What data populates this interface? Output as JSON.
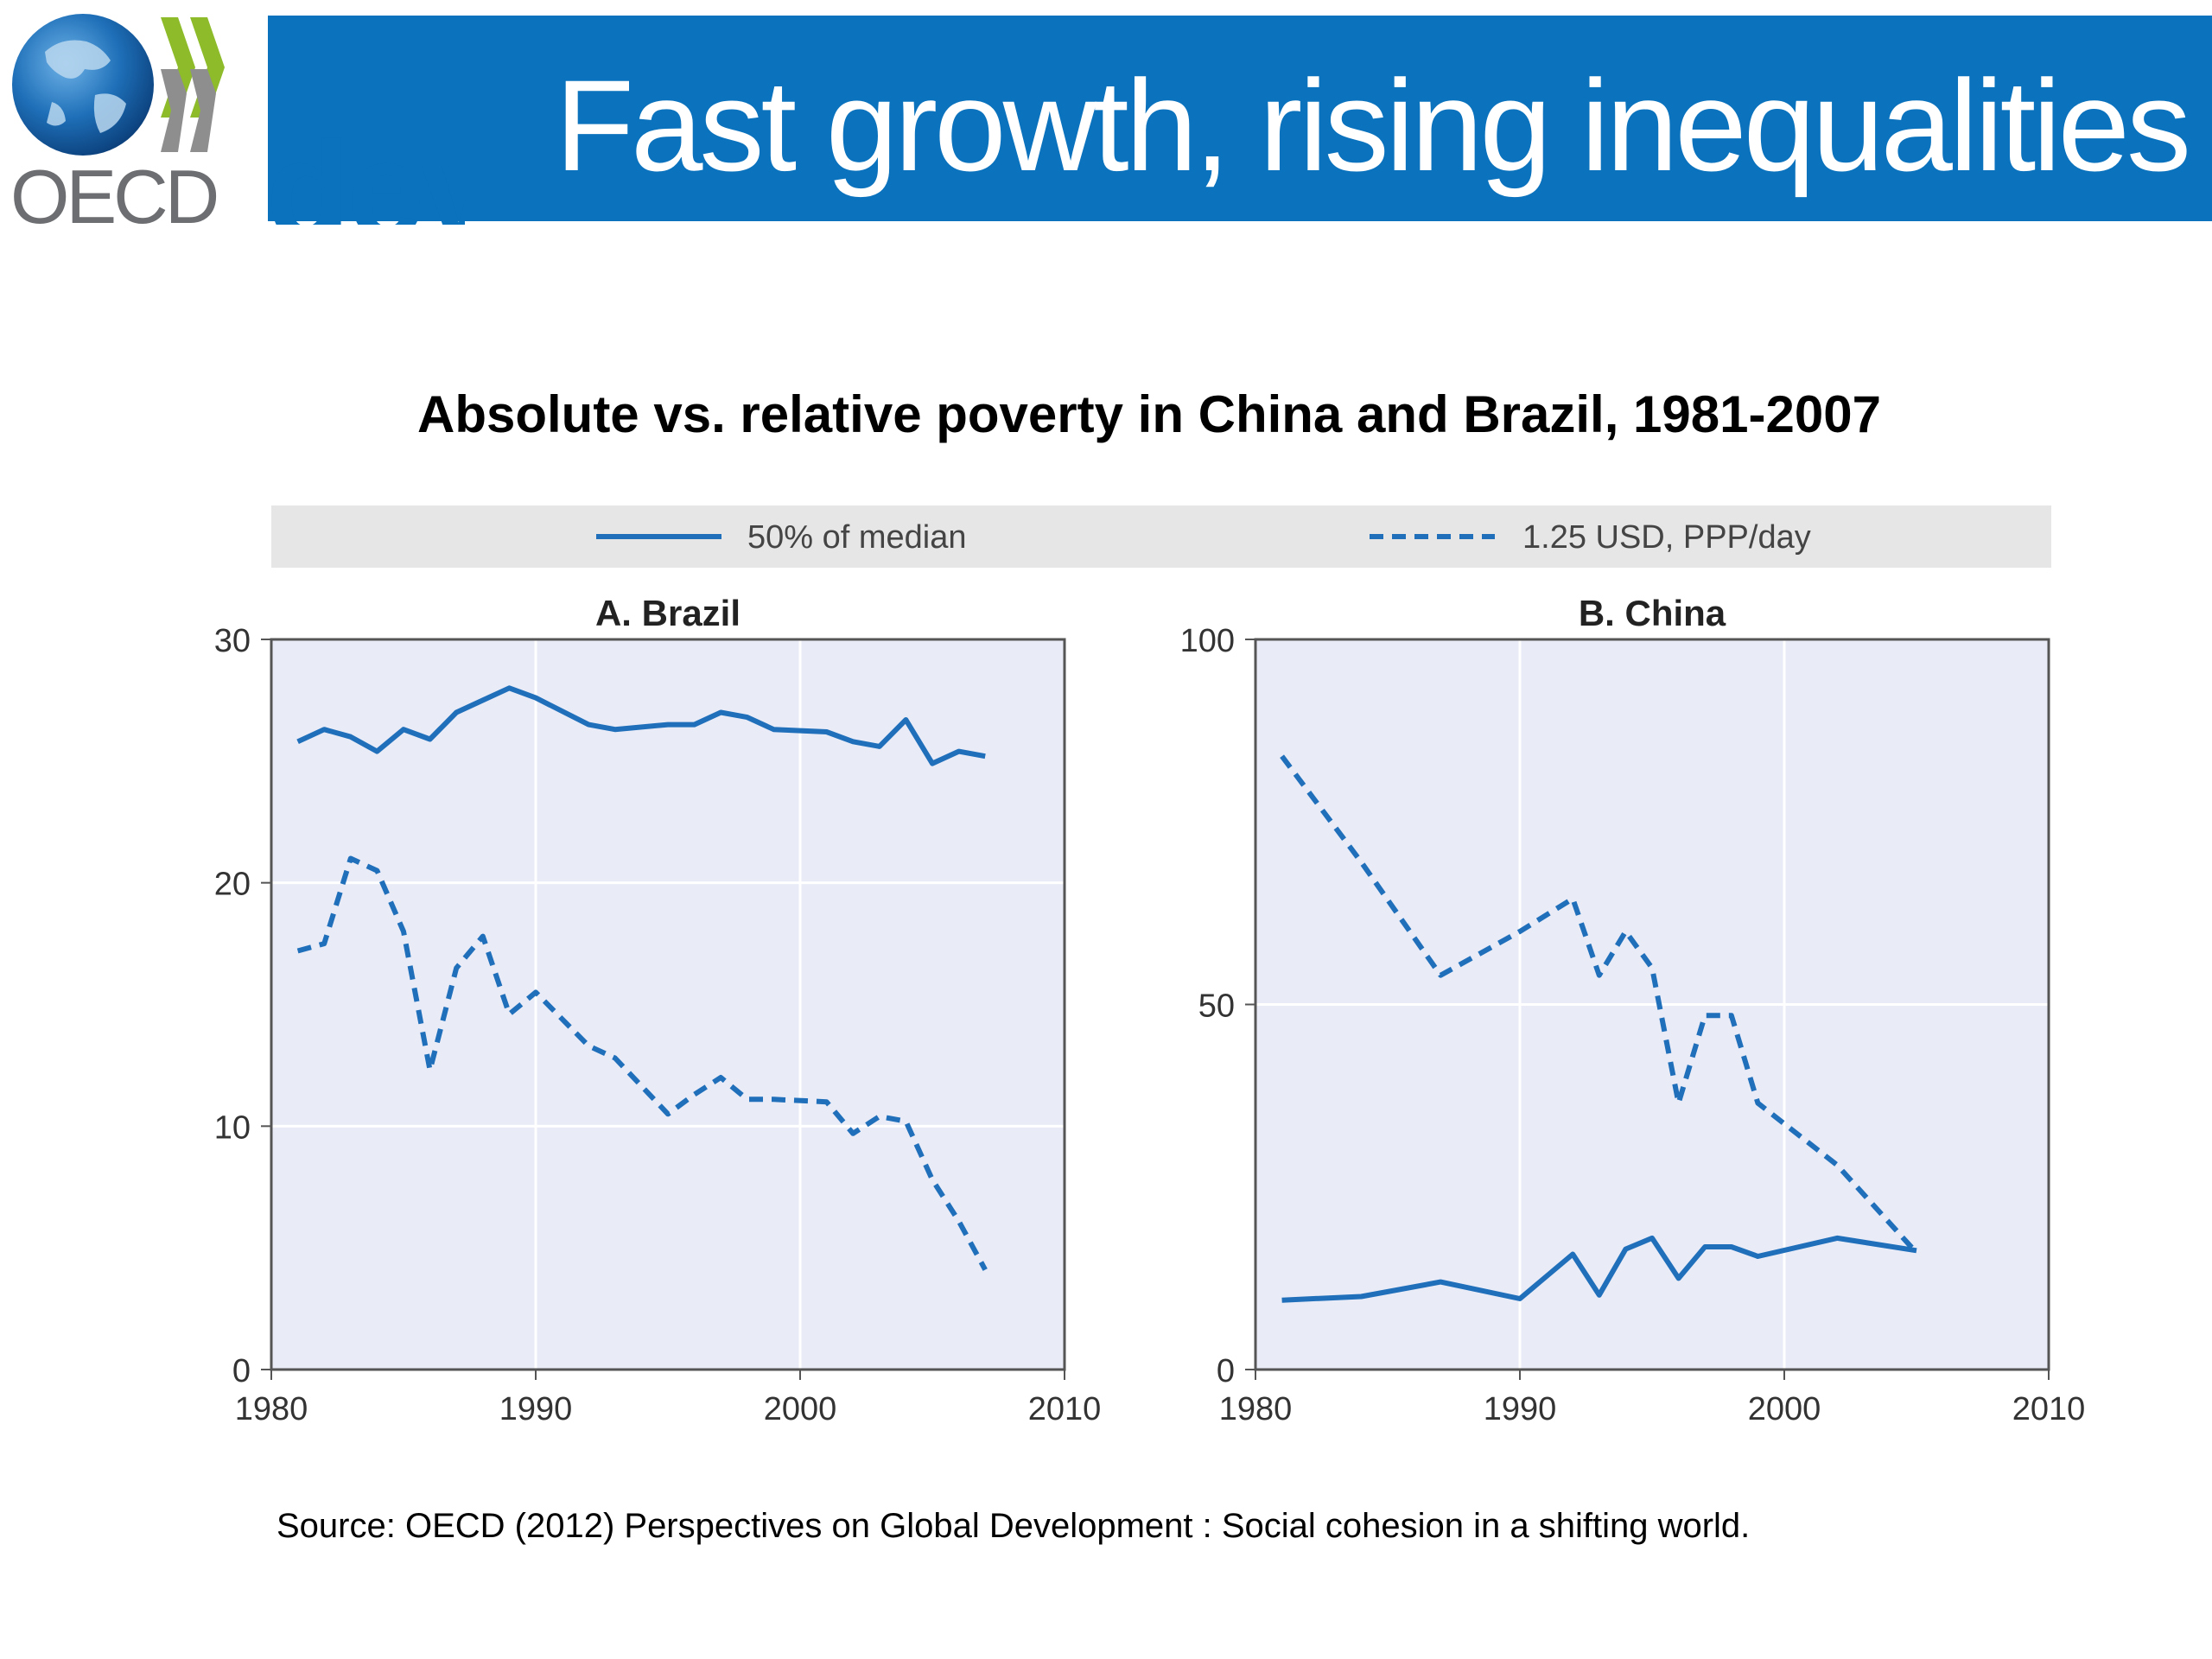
{
  "header": {
    "logo_text": "OECD",
    "dev_text": "dev",
    "title": "Fast growth, rising inequalities"
  },
  "colors": {
    "banner": "#0b72bd",
    "series": "#1f6fba",
    "plot_bg": "#e9ebf7",
    "legend_bg": "#e6e6e6"
  },
  "source_note": "Source:  OECD (2012) Perspectives on Global Development : Social cohesion in a shifting world.",
  "chart_data": {
    "type": "line",
    "title": "Absolute vs. relative poverty in China and Brazil, 1981-2007",
    "legend": [
      {
        "name": "50% of median",
        "style": "solid"
      },
      {
        "name": "1.25 USD, PPP/day",
        "style": "dashed"
      }
    ],
    "legend_placement": "top",
    "grid": true,
    "panels": [
      {
        "title": "A. Brazil",
        "xlim": [
          1980,
          2010
        ],
        "ylim": [
          0,
          30
        ],
        "xticks": [
          1980,
          1990,
          2000,
          2010
        ],
        "yticks": [
          0,
          10,
          20,
          30
        ],
        "series": [
          {
            "name": "50% of median",
            "style": "solid",
            "x": [
              1981,
              1982,
              1983,
              1984,
              1985,
              1986,
              1987,
              1988,
              1989,
              1990,
              1992,
              1993,
              1995,
              1996,
              1997,
              1998,
              1999,
              2001,
              2002,
              2003,
              2004,
              2005,
              2006,
              2007
            ],
            "y": [
              25.8,
              26.3,
              26.0,
              25.4,
              26.3,
              25.9,
              27.0,
              27.5,
              28.0,
              27.6,
              26.5,
              26.3,
              26.5,
              26.5,
              27.0,
              26.8,
              26.3,
              26.2,
              25.8,
              25.6,
              26.7,
              24.9,
              25.4,
              25.2
            ]
          },
          {
            "name": "1.25 USD, PPP/day",
            "style": "dashed",
            "x": [
              1981,
              1982,
              1983,
              1984,
              1985,
              1986,
              1987,
              1988,
              1989,
              1990,
              1992,
              1993,
              1995,
              1996,
              1997,
              1998,
              1999,
              2001,
              2002,
              2003,
              2004,
              2005,
              2006,
              2007
            ],
            "y": [
              17.2,
              17.5,
              21.0,
              20.5,
              18.0,
              12.3,
              16.5,
              17.8,
              14.6,
              15.5,
              13.3,
              12.8,
              10.5,
              11.3,
              12.0,
              11.1,
              11.1,
              11.0,
              9.7,
              10.4,
              10.2,
              7.8,
              6.1,
              4.1
            ]
          }
        ]
      },
      {
        "title": "B. China",
        "xlim": [
          1980,
          2010
        ],
        "ylim": [
          0,
          100
        ],
        "xticks": [
          1980,
          1990,
          2000,
          2010
        ],
        "yticks": [
          0,
          50,
          100
        ],
        "series": [
          {
            "name": "50% of median",
            "style": "solid",
            "x": [
              1981,
              1984,
              1987,
              1990,
              1992,
              1993,
              1994,
              1995,
              1996,
              1997,
              1998,
              1999,
              2002,
              2005
            ],
            "y": [
              9.5,
              10.0,
              12.0,
              9.7,
              15.8,
              10.2,
              16.5,
              18.0,
              12.5,
              16.8,
              16.8,
              15.5,
              18.0,
              16.3
            ]
          },
          {
            "name": "1.25 USD, PPP/day",
            "style": "dashed",
            "x": [
              1981,
              1984,
              1987,
              1990,
              1992,
              1993,
              1994,
              1995,
              1996,
              1997,
              1998,
              1999,
              2002,
              2005
            ],
            "y": [
              84.0,
              69.5,
              54.0,
              60.0,
              64.5,
              54.0,
              60.0,
              55.0,
              36.5,
              48.5,
              48.5,
              36.5,
              28.0,
              16.0
            ]
          }
        ]
      }
    ]
  }
}
